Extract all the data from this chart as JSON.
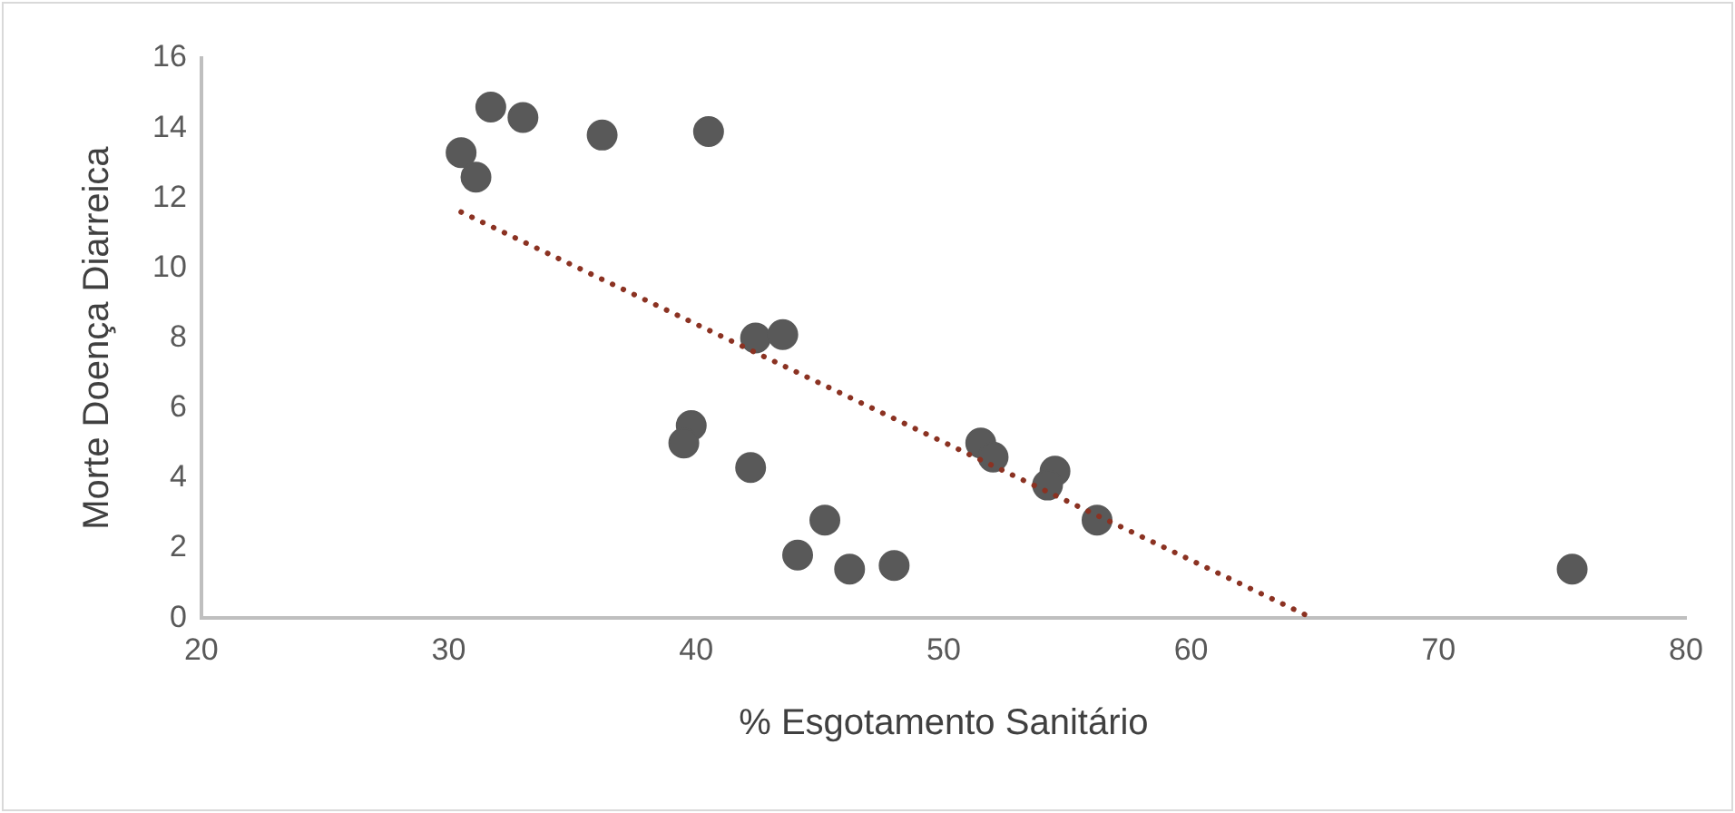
{
  "chart_data": {
    "type": "scatter",
    "xlabel": "% Esgotamento Sanitário",
    "ylabel": "Morte Doença Diarreica",
    "xlim": [
      20,
      80
    ],
    "xticks": [
      20,
      30,
      40,
      50,
      60,
      70,
      80
    ],
    "ylim": [
      0,
      16
    ],
    "yticks": [
      0,
      2,
      4,
      6,
      8,
      10,
      12,
      14,
      16
    ],
    "grid": false,
    "legend": false,
    "marker": "circle",
    "series": [
      {
        "type": "scatter",
        "color": "#595959",
        "x": [
          30.5,
          31.1,
          31.7,
          33.0,
          36.2,
          40.5,
          42.4,
          43.5,
          39.8,
          39.5,
          42.2,
          45.2,
          44.1,
          46.2,
          48.0,
          51.5,
          52.0,
          54.5,
          54.2,
          56.2,
          75.4
        ],
        "values": [
          13.3,
          12.6,
          14.6,
          14.3,
          13.8,
          13.9,
          8.0,
          8.1,
          5.5,
          5.0,
          4.3,
          2.8,
          1.8,
          1.4,
          1.5,
          5.0,
          4.6,
          4.2,
          3.8,
          2.8,
          1.4
        ]
      },
      {
        "type": "line",
        "color": "#8b3222",
        "line_style": "dotted",
        "marker": "none",
        "x": [
          30.5,
          64.9
        ],
        "values": [
          11.6,
          0
        ]
      }
    ]
  }
}
